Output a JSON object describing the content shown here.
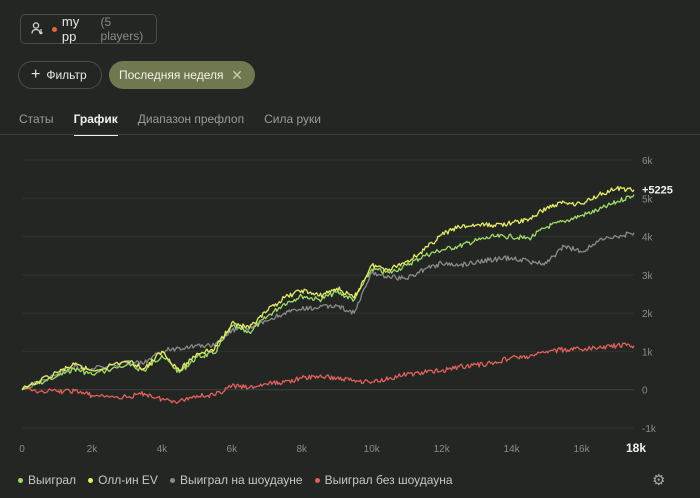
{
  "players_button": {
    "name": "my pp",
    "count": "(5 players)",
    "icon": "user-icon"
  },
  "filter_button": {
    "label": "Фильтр",
    "icon": "plus-icon"
  },
  "active_filter": {
    "label": "Последняя неделя",
    "icon": "close-icon"
  },
  "tabs": [
    {
      "label": "Статы",
      "active": false
    },
    {
      "label": "График",
      "active": true
    },
    {
      "label": "Диапазон префлоп",
      "active": false
    },
    {
      "label": "Сила руки",
      "active": false
    }
  ],
  "colors": {
    "accent": "#6f784e",
    "green": "#9fdc66",
    "yellow": "#e6ec6a",
    "gray": "#8a8a8a",
    "red": "#e0605c"
  },
  "chart_data": {
    "type": "line",
    "x_ticks": [
      "0",
      "2k",
      "4k",
      "6k",
      "8k",
      "10k",
      "12k",
      "14k",
      "16k"
    ],
    "x_end_label": "18k",
    "y_ticks": [
      "-1k",
      "0",
      "1k",
      "2k",
      "3k",
      "4k",
      "5k",
      "6k"
    ],
    "xlim": [
      0,
      17500
    ],
    "ylim": [
      -1000,
      6000
    ],
    "end_value_label": "+5225",
    "grid": true,
    "legend_position": "bottom-left",
    "series": [
      {
        "name": "Выиграл",
        "color": "#9fdc66",
        "x": [
          0,
          1000,
          1500,
          2000,
          3000,
          3500,
          4000,
          4500,
          5000,
          5500,
          6000,
          6500,
          7000,
          7500,
          8000,
          8500,
          9000,
          9500,
          10000,
          10500,
          11000,
          11500,
          12000,
          12500,
          13000,
          13500,
          14000,
          14500,
          15000,
          15500,
          16000,
          16500,
          17000,
          17500
        ],
        "y": [
          0,
          350,
          550,
          400,
          650,
          500,
          900,
          450,
          850,
          950,
          1650,
          1500,
          1900,
          2250,
          2450,
          2350,
          2550,
          2350,
          3150,
          3050,
          3250,
          3500,
          3650,
          3750,
          3900,
          4000,
          4000,
          3950,
          4250,
          4400,
          4550,
          4700,
          4900,
          5100
        ]
      },
      {
        "name": "Олл-ин EV",
        "color": "#e6ec6a",
        "x": [
          0,
          1000,
          1500,
          2000,
          3000,
          3500,
          4000,
          4500,
          5000,
          5500,
          6000,
          6500,
          7000,
          7500,
          8000,
          8500,
          9000,
          9500,
          10000,
          10500,
          11000,
          11500,
          12000,
          12500,
          13000,
          13500,
          14000,
          14500,
          15000,
          15500,
          16000,
          16500,
          17000,
          17500
        ],
        "y": [
          0,
          450,
          650,
          500,
          750,
          550,
          1000,
          500,
          950,
          1050,
          1750,
          1600,
          2050,
          2400,
          2600,
          2450,
          2650,
          2400,
          3250,
          3150,
          3350,
          3650,
          4050,
          4250,
          4300,
          4300,
          4350,
          4450,
          4750,
          4900,
          4850,
          5100,
          5250,
          5225
        ]
      },
      {
        "name": "Выиграл на шоудауне",
        "color": "#8a8a8a",
        "x": [
          0,
          1000,
          1500,
          2000,
          3000,
          3500,
          4000,
          4500,
          5000,
          5500,
          6000,
          6500,
          7000,
          7500,
          8000,
          8500,
          9000,
          9500,
          10000,
          10500,
          11000,
          11500,
          12000,
          12500,
          13000,
          13500,
          14000,
          14500,
          15000,
          15500,
          16000,
          16500,
          17000,
          17500
        ],
        "y": [
          0,
          400,
          600,
          550,
          700,
          700,
          1000,
          1100,
          1150,
          1150,
          1550,
          1600,
          1800,
          2000,
          2100,
          2150,
          2200,
          2000,
          3050,
          2950,
          2900,
          3150,
          3300,
          3250,
          3350,
          3400,
          3450,
          3350,
          3300,
          3750,
          3600,
          3900,
          4000,
          4100
        ]
      },
      {
        "name": "Выиграл без шоудауна",
        "color": "#e0605c",
        "x": [
          0,
          1000,
          1500,
          2000,
          3000,
          3500,
          4000,
          4500,
          5000,
          5500,
          6000,
          6500,
          7000,
          7500,
          8000,
          8500,
          9000,
          9500,
          10000,
          10500,
          11000,
          11500,
          12000,
          12500,
          13000,
          13500,
          14000,
          14500,
          15000,
          15500,
          16000,
          16500,
          17000,
          17500
        ],
        "y": [
          0,
          -50,
          -30,
          -150,
          -200,
          -100,
          -250,
          -300,
          -150,
          -150,
          100,
          50,
          150,
          200,
          300,
          350,
          300,
          250,
          200,
          300,
          400,
          450,
          500,
          600,
          650,
          700,
          850,
          850,
          1000,
          1050,
          1050,
          1100,
          1150,
          1150
        ]
      }
    ]
  },
  "settings": {
    "icon": "gear-icon"
  }
}
